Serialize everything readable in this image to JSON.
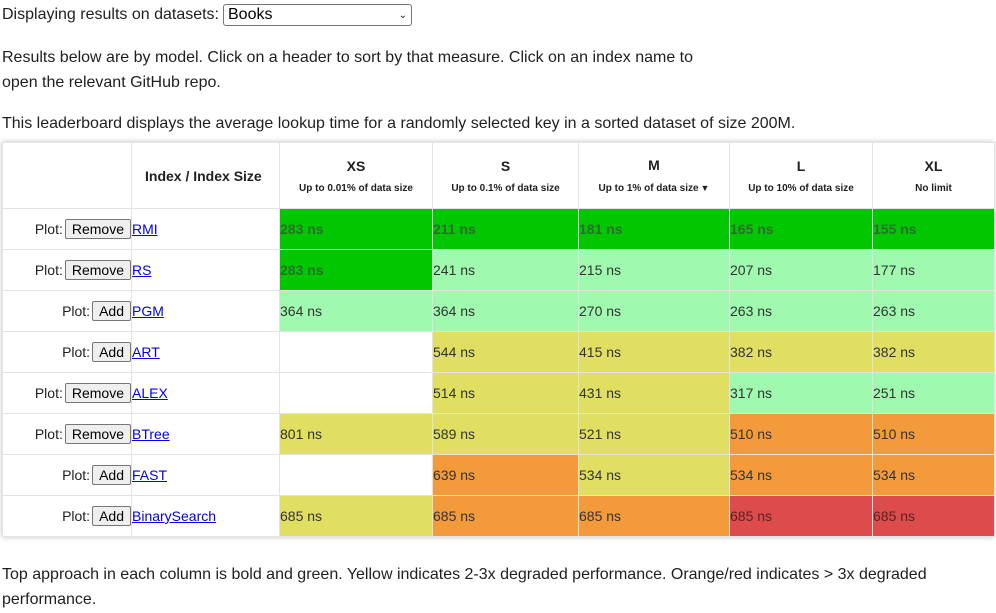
{
  "header": {
    "selector_label": "Displaying results on datasets:",
    "selected_dataset": "Books"
  },
  "intro": {
    "line1": "Results below are by model. Click on a header to sort by that measure. Click on an index name to open the relevant GitHub repo.",
    "line2": "This leaderboard displays the average lookup time for a randomly selected key in a sorted dataset of size 200M."
  },
  "table": {
    "index_header": "Index / Index Size",
    "plot_label": "Plot:",
    "columns": [
      {
        "key": "XS",
        "label": "XS",
        "sub": "Up to 0.01% of data size"
      },
      {
        "key": "S",
        "label": "S",
        "sub": "Up to 0.1% of data size"
      },
      {
        "key": "M",
        "label": "M",
        "sub": "Up to 1% of data size",
        "sorted": true
      },
      {
        "key": "L",
        "label": "L",
        "sub": "Up to 10% of data size"
      },
      {
        "key": "XL",
        "label": "XL",
        "sub": "No limit"
      }
    ],
    "rows": [
      {
        "name": "RMI",
        "action": "Remove",
        "cells": [
          {
            "value": "283 ns",
            "status": "green"
          },
          {
            "value": "211 ns",
            "status": "green"
          },
          {
            "value": "181 ns",
            "status": "green"
          },
          {
            "value": "165 ns",
            "status": "green"
          },
          {
            "value": "155 ns",
            "status": "green"
          }
        ]
      },
      {
        "name": "RS",
        "action": "Remove",
        "cells": [
          {
            "value": "283 ns",
            "status": "green"
          },
          {
            "value": "241 ns",
            "status": "light"
          },
          {
            "value": "215 ns",
            "status": "light"
          },
          {
            "value": "207 ns",
            "status": "light"
          },
          {
            "value": "177 ns",
            "status": "light"
          }
        ]
      },
      {
        "name": "PGM",
        "action": "Add",
        "cells": [
          {
            "value": "364 ns",
            "status": "light"
          },
          {
            "value": "364 ns",
            "status": "light"
          },
          {
            "value": "270 ns",
            "status": "light"
          },
          {
            "value": "263 ns",
            "status": "light"
          },
          {
            "value": "263 ns",
            "status": "light"
          }
        ]
      },
      {
        "name": "ART",
        "action": "Add",
        "cells": [
          {
            "value": "",
            "status": "empty"
          },
          {
            "value": "544 ns",
            "status": "yellow"
          },
          {
            "value": "415 ns",
            "status": "yellow"
          },
          {
            "value": "382 ns",
            "status": "yellow"
          },
          {
            "value": "382 ns",
            "status": "yellow"
          }
        ]
      },
      {
        "name": "ALEX",
        "action": "Remove",
        "cells": [
          {
            "value": "",
            "status": "empty"
          },
          {
            "value": "514 ns",
            "status": "yellow"
          },
          {
            "value": "431 ns",
            "status": "yellow"
          },
          {
            "value": "317 ns",
            "status": "light"
          },
          {
            "value": "251 ns",
            "status": "light"
          }
        ]
      },
      {
        "name": "BTree",
        "action": "Remove",
        "cells": [
          {
            "value": "801 ns",
            "status": "yellow"
          },
          {
            "value": "589 ns",
            "status": "yellow"
          },
          {
            "value": "521 ns",
            "status": "yellow"
          },
          {
            "value": "510 ns",
            "status": "orange"
          },
          {
            "value": "510 ns",
            "status": "orange"
          }
        ]
      },
      {
        "name": "FAST",
        "action": "Add",
        "cells": [
          {
            "value": "",
            "status": "empty"
          },
          {
            "value": "639 ns",
            "status": "orange"
          },
          {
            "value": "534 ns",
            "status": "yellow"
          },
          {
            "value": "534 ns",
            "status": "orange"
          },
          {
            "value": "534 ns",
            "status": "orange"
          }
        ]
      },
      {
        "name": "BinarySearch",
        "action": "Add",
        "cells": [
          {
            "value": "685 ns",
            "status": "yellow"
          },
          {
            "value": "685 ns",
            "status": "orange"
          },
          {
            "value": "685 ns",
            "status": "orange"
          },
          {
            "value": "685 ns",
            "status": "red"
          },
          {
            "value": "685 ns",
            "status": "red"
          }
        ]
      }
    ]
  },
  "footer": {
    "note": "Top approach in each column is bold and green. Yellow indicates 2-3x degraded performance. Orange/red indicates > 3x degraded performance."
  },
  "colors": {
    "green": "#00c700",
    "light_green": "#9ff9af",
    "yellow": "#e0df62",
    "orange": "#f39b3b",
    "red": "#dd4c4c",
    "link": "#0000ee"
  }
}
